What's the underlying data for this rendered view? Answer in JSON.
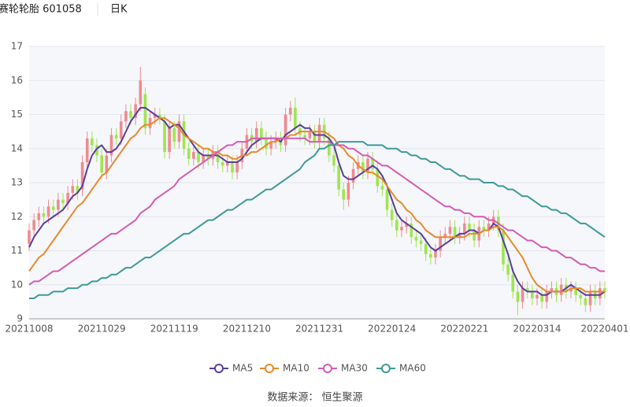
{
  "chart_data": {
    "type": "candlestick",
    "title": "赛轮轮胎 601058",
    "period": "日K",
    "source": "数据来源： 恒生聚源",
    "categories": [
      "20211008",
      null,
      null,
      null,
      null,
      null,
      null,
      null,
      null,
      null,
      null,
      null,
      null,
      null,
      null,
      "20211029",
      null,
      null,
      null,
      null,
      null,
      null,
      null,
      null,
      null,
      null,
      null,
      null,
      null,
      null,
      "20211119",
      null,
      null,
      null,
      null,
      null,
      null,
      null,
      null,
      null,
      null,
      null,
      null,
      null,
      null,
      "20211210",
      null,
      null,
      null,
      null,
      null,
      null,
      null,
      null,
      null,
      null,
      null,
      null,
      null,
      null,
      "20211231",
      null,
      null,
      null,
      null,
      null,
      null,
      null,
      null,
      null,
      null,
      null,
      null,
      null,
      null,
      "20220124",
      null,
      null,
      null,
      null,
      null,
      null,
      null,
      null,
      null,
      null,
      null,
      null,
      null,
      null,
      "20220221",
      null,
      null,
      null,
      null,
      null,
      null,
      null,
      null,
      null,
      null,
      null,
      null,
      null,
      null,
      "20220314",
      null,
      null,
      null,
      null,
      null,
      null,
      null,
      null,
      null,
      null,
      null,
      null,
      null,
      "20220401"
    ],
    "open": [
      11.2,
      11.6,
      11.9,
      12.1,
      12.0,
      12.3,
      12.2,
      12.5,
      12.4,
      12.7,
      12.9,
      12.8,
      13.6,
      14.3,
      14.1,
      13.8,
      13.3,
      13.8,
      14.4,
      14.3,
      14.8,
      15.1,
      14.9,
      15.3,
      15.6,
      14.6,
      14.9,
      15.0,
      14.8,
      13.9,
      14.6,
      14.2,
      14.8,
      14.0,
      13.7,
      13.9,
      13.6,
      13.8,
      13.7,
      13.9,
      13.6,
      13.5,
      13.6,
      13.3,
      13.6,
      14.0,
      14.4,
      14.2,
      14.6,
      14.3,
      14.0,
      14.2,
      14.3,
      14.1,
      15.0,
      15.2,
      14.6,
      14.4,
      14.3,
      14.5,
      14.2,
      14.7,
      14.3,
      13.8,
      13.5,
      12.8,
      12.5,
      13.0,
      13.4,
      13.6,
      13.3,
      13.7,
      13.4,
      12.9,
      12.8,
      12.2,
      11.9,
      11.6,
      11.7,
      11.8,
      11.4,
      11.3,
      11.2,
      10.9,
      10.8,
      11.0,
      11.4,
      11.5,
      11.7,
      11.4,
      11.5,
      11.8,
      11.6,
      11.3,
      11.7,
      11.6,
      11.8,
      12.0,
      11.6,
      10.6,
      10.3,
      9.8,
      9.5,
      9.9,
      9.8,
      9.6,
      9.7,
      9.5,
      9.8,
      9.9,
      9.7,
      10.0,
      9.8,
      9.9,
      9.7,
      9.6,
      9.4,
      9.8,
      9.6,
      9.9
    ],
    "close": [
      11.6,
      11.9,
      12.1,
      12.0,
      12.3,
      12.2,
      12.5,
      12.4,
      12.7,
      12.9,
      12.7,
      13.6,
      14.3,
      14.1,
      13.8,
      13.3,
      13.8,
      14.4,
      14.3,
      14.8,
      15.1,
      14.9,
      15.3,
      16.0,
      14.6,
      14.9,
      15.0,
      14.9,
      13.9,
      14.6,
      14.2,
      14.8,
      14.0,
      13.7,
      13.9,
      13.6,
      13.8,
      13.7,
      13.9,
      13.6,
      13.5,
      13.6,
      13.3,
      13.6,
      14.0,
      14.4,
      14.2,
      14.6,
      14.3,
      14.0,
      14.2,
      14.3,
      14.1,
      15.0,
      15.2,
      14.6,
      14.4,
      14.3,
      14.5,
      14.2,
      14.7,
      14.3,
      13.8,
      13.5,
      12.8,
      12.5,
      13.0,
      13.4,
      13.6,
      13.3,
      13.7,
      13.4,
      12.9,
      12.8,
      12.2,
      11.9,
      11.6,
      11.7,
      11.8,
      11.4,
      11.3,
      11.2,
      10.9,
      10.8,
      11.0,
      11.4,
      11.5,
      11.7,
      11.4,
      11.5,
      11.8,
      11.6,
      11.3,
      11.7,
      11.6,
      11.8,
      12.0,
      11.6,
      10.6,
      10.3,
      9.8,
      9.5,
      9.9,
      9.8,
      9.6,
      9.7,
      9.5,
      9.8,
      9.9,
      9.7,
      10.0,
      9.8,
      9.9,
      9.7,
      9.6,
      9.4,
      9.8,
      9.6,
      9.9,
      9.8
    ],
    "high": [
      11.8,
      12.1,
      12.3,
      12.3,
      12.5,
      12.5,
      12.7,
      12.7,
      12.9,
      13.1,
      13.1,
      13.8,
      14.5,
      14.5,
      14.3,
      14.0,
      14.0,
      14.6,
      14.6,
      15.0,
      15.3,
      15.3,
      15.5,
      16.4,
      15.8,
      15.1,
      15.2,
      15.2,
      15.0,
      14.8,
      14.8,
      15.0,
      15.0,
      14.2,
      14.1,
      14.1,
      14.0,
      14.0,
      14.1,
      14.1,
      13.8,
      13.8,
      13.8,
      13.8,
      14.2,
      14.6,
      14.6,
      14.8,
      14.8,
      14.5,
      14.4,
      14.5,
      14.5,
      15.2,
      15.4,
      15.5,
      14.8,
      14.6,
      14.7,
      14.7,
      14.9,
      14.9,
      14.5,
      14.0,
      13.7,
      13.0,
      13.2,
      13.6,
      13.8,
      13.8,
      13.9,
      13.9,
      13.6,
      13.1,
      13.0,
      12.4,
      12.1,
      11.9,
      12.0,
      12.0,
      11.6,
      11.5,
      11.4,
      11.1,
      11.2,
      11.6,
      11.7,
      11.9,
      11.9,
      11.7,
      12.0,
      12.0,
      11.8,
      11.9,
      11.9,
      12.0,
      12.2,
      12.2,
      11.8,
      10.8,
      10.5,
      10.0,
      10.1,
      10.1,
      10.0,
      9.9,
      9.9,
      10.0,
      10.1,
      10.1,
      10.2,
      10.2,
      10.1,
      10.1,
      9.9,
      9.8,
      10.0,
      10.0,
      10.1,
      10.1
    ],
    "low": [
      11.0,
      11.4,
      11.7,
      11.8,
      11.8,
      12.0,
      12.0,
      12.2,
      12.2,
      12.5,
      12.5,
      12.6,
      13.4,
      13.9,
      13.6,
      13.1,
      13.1,
      13.6,
      14.1,
      14.1,
      14.6,
      14.7,
      14.7,
      15.1,
      14.4,
      14.4,
      14.7,
      14.7,
      13.7,
      13.7,
      14.0,
      14.0,
      13.8,
      13.5,
      13.5,
      13.4,
      13.4,
      13.5,
      13.5,
      13.4,
      13.3,
      13.3,
      13.1,
      13.1,
      13.4,
      13.8,
      14.0,
      14.0,
      14.1,
      13.8,
      13.8,
      14.0,
      13.9,
      13.9,
      14.8,
      14.4,
      14.2,
      14.1,
      14.1,
      14.0,
      14.0,
      14.1,
      13.6,
      13.3,
      12.6,
      12.2,
      12.3,
      12.8,
      13.2,
      13.1,
      13.1,
      13.2,
      12.7,
      12.6,
      12.0,
      11.7,
      11.4,
      11.4,
      11.5,
      11.2,
      11.1,
      11.0,
      10.7,
      10.6,
      10.6,
      10.8,
      11.2,
      11.3,
      11.2,
      11.2,
      11.3,
      11.4,
      11.1,
      11.1,
      11.4,
      11.4,
      11.6,
      11.4,
      10.4,
      10.1,
      9.6,
      9.1,
      9.3,
      9.6,
      9.4,
      9.4,
      9.3,
      9.3,
      9.6,
      9.5,
      9.5,
      9.6,
      9.6,
      9.5,
      9.4,
      9.2,
      9.2,
      9.4,
      9.4,
      9.6
    ],
    "up_color": "#f08a8e",
    "down_color": "#9ee64f",
    "series": [
      {
        "name": "MA5",
        "color": "#5a3d9e",
        "values": [
          11.1,
          11.4,
          11.6,
          11.8,
          11.9,
          12.0,
          12.1,
          12.2,
          12.4,
          12.6,
          12.7,
          12.9,
          13.4,
          13.8,
          14.0,
          14.1,
          13.9,
          13.9,
          14.0,
          14.2,
          14.5,
          14.8,
          15.0,
          15.2,
          15.2,
          15.1,
          15.0,
          14.9,
          14.8,
          14.6,
          14.7,
          14.7,
          14.5,
          14.3,
          14.1,
          13.9,
          13.8,
          13.8,
          13.8,
          13.8,
          13.7,
          13.6,
          13.6,
          13.6,
          13.7,
          13.9,
          14.1,
          14.2,
          14.3,
          14.3,
          14.3,
          14.3,
          14.2,
          14.4,
          14.5,
          14.6,
          14.7,
          14.6,
          14.6,
          14.4,
          14.4,
          14.4,
          14.3,
          14.1,
          13.6,
          13.2,
          13.1,
          13.1,
          13.2,
          13.3,
          13.4,
          13.5,
          13.4,
          13.2,
          12.9,
          12.5,
          12.1,
          11.9,
          11.8,
          11.7,
          11.6,
          11.5,
          11.3,
          11.1,
          11.0,
          11.1,
          11.2,
          11.3,
          11.4,
          11.5,
          11.5,
          11.6,
          11.6,
          11.5,
          11.6,
          11.6,
          11.8,
          11.7,
          11.3,
          10.9,
          10.4,
          10.1,
          9.9,
          9.8,
          9.8,
          9.8,
          9.7,
          9.7,
          9.8,
          9.8,
          9.8,
          9.9,
          10.0,
          9.9,
          9.8,
          9.7,
          9.7,
          9.7,
          9.7,
          9.8
        ]
      },
      {
        "name": "MA10",
        "color": "#e8892b",
        "values": [
          10.4,
          10.6,
          10.8,
          10.9,
          11.1,
          11.3,
          11.5,
          11.7,
          11.9,
          12.1,
          12.3,
          12.4,
          12.6,
          12.8,
          13.0,
          13.2,
          13.3,
          13.5,
          13.7,
          13.9,
          14.1,
          14.3,
          14.4,
          14.6,
          14.7,
          14.7,
          14.8,
          14.9,
          14.9,
          14.8,
          14.7,
          14.6,
          14.4,
          14.3,
          14.2,
          14.1,
          14.0,
          14.0,
          13.9,
          13.9,
          13.8,
          13.8,
          13.7,
          13.7,
          13.8,
          13.8,
          13.9,
          13.9,
          14.0,
          14.1,
          14.2,
          14.2,
          14.3,
          14.3,
          14.4,
          14.4,
          14.5,
          14.5,
          14.5,
          14.5,
          14.5,
          14.5,
          14.4,
          14.3,
          14.1,
          14.0,
          13.8,
          13.7,
          13.5,
          13.4,
          13.3,
          13.3,
          13.2,
          13.1,
          12.9,
          12.7,
          12.5,
          12.4,
          12.2,
          12.1,
          11.9,
          11.8,
          11.6,
          11.5,
          11.4,
          11.4,
          11.4,
          11.4,
          11.4,
          11.4,
          11.4,
          11.5,
          11.5,
          11.5,
          11.6,
          11.6,
          11.7,
          11.7,
          11.6,
          11.4,
          11.2,
          11.0,
          10.8,
          10.5,
          10.2,
          10.0,
          9.9,
          9.8,
          9.8,
          9.8,
          9.8,
          9.8,
          9.9,
          9.9,
          9.9,
          9.8,
          9.8,
          9.8,
          9.8,
          9.8
        ]
      },
      {
        "name": "MA30",
        "color": "#d35cb3",
        "values": [
          10.0,
          10.1,
          10.1,
          10.2,
          10.3,
          10.4,
          10.4,
          10.5,
          10.6,
          10.7,
          10.8,
          10.9,
          11.0,
          11.1,
          11.2,
          11.3,
          11.4,
          11.5,
          11.5,
          11.6,
          11.7,
          11.8,
          11.9,
          12.1,
          12.2,
          12.3,
          12.5,
          12.6,
          12.7,
          12.8,
          12.9,
          13.1,
          13.2,
          13.3,
          13.4,
          13.5,
          13.6,
          13.7,
          13.8,
          13.9,
          14.0,
          14.1,
          14.1,
          14.2,
          14.2,
          14.2,
          14.3,
          14.3,
          14.3,
          14.3,
          14.3,
          14.3,
          14.3,
          14.3,
          14.3,
          14.3,
          14.3,
          14.3,
          14.2,
          14.2,
          14.2,
          14.2,
          14.2,
          14.1,
          14.1,
          14.1,
          14.0,
          14.0,
          13.9,
          13.8,
          13.8,
          13.7,
          13.6,
          13.5,
          13.5,
          13.4,
          13.3,
          13.2,
          13.1,
          13.0,
          12.9,
          12.8,
          12.7,
          12.6,
          12.5,
          12.4,
          12.3,
          12.3,
          12.2,
          12.2,
          12.1,
          12.1,
          12.0,
          12.0,
          12.0,
          11.9,
          11.9,
          11.8,
          11.7,
          11.6,
          11.6,
          11.5,
          11.4,
          11.3,
          11.3,
          11.2,
          11.1,
          11.1,
          11.0,
          11.0,
          10.9,
          10.8,
          10.8,
          10.7,
          10.6,
          10.6,
          10.5,
          10.5,
          10.4,
          10.4
        ]
      },
      {
        "name": "MA60",
        "color": "#3d9a97",
        "values": [
          9.6,
          9.6,
          9.7,
          9.7,
          9.7,
          9.8,
          9.8,
          9.8,
          9.9,
          9.9,
          9.9,
          10.0,
          10.0,
          10.1,
          10.1,
          10.2,
          10.2,
          10.3,
          10.3,
          10.4,
          10.5,
          10.5,
          10.6,
          10.7,
          10.8,
          10.8,
          10.9,
          11.0,
          11.1,
          11.2,
          11.3,
          11.4,
          11.5,
          11.5,
          11.6,
          11.7,
          11.8,
          11.9,
          11.9,
          12.0,
          12.1,
          12.2,
          12.2,
          12.3,
          12.4,
          12.5,
          12.5,
          12.6,
          12.7,
          12.8,
          12.8,
          12.9,
          13.0,
          13.1,
          13.2,
          13.3,
          13.4,
          13.6,
          13.7,
          13.8,
          14.0,
          14.0,
          14.1,
          14.1,
          14.2,
          14.2,
          14.2,
          14.2,
          14.2,
          14.2,
          14.1,
          14.1,
          14.1,
          14.1,
          14.0,
          14.0,
          14.0,
          13.9,
          13.9,
          13.8,
          13.8,
          13.7,
          13.7,
          13.6,
          13.6,
          13.5,
          13.4,
          13.4,
          13.3,
          13.2,
          13.2,
          13.1,
          13.1,
          13.1,
          13.0,
          13.0,
          13.0,
          12.9,
          12.9,
          12.8,
          12.8,
          12.7,
          12.6,
          12.6,
          12.5,
          12.4,
          12.3,
          12.3,
          12.2,
          12.2,
          12.1,
          12.1,
          12.0,
          11.9,
          11.8,
          11.8,
          11.7,
          11.6,
          11.5,
          11.4
        ]
      }
    ],
    "ylim": [
      9,
      17
    ],
    "yticks": [
      9,
      10,
      11,
      12,
      13,
      14,
      15,
      16,
      17
    ],
    "grid": true
  }
}
